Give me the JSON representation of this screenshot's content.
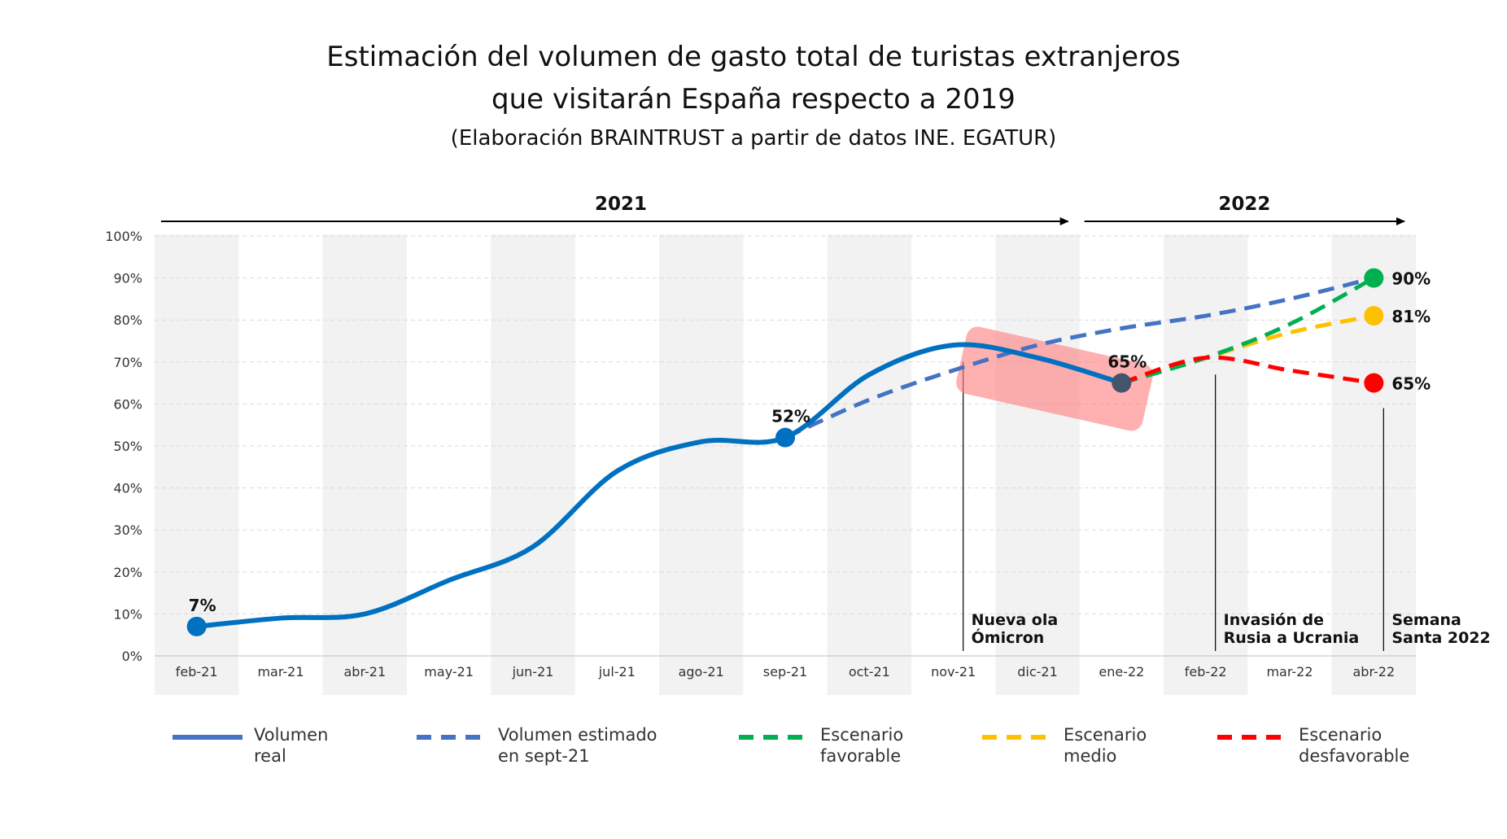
{
  "title_line1": "Estimación del volumen de gasto total de turistas extranjeros",
  "title_line2": "que visitarán España respecto a 2019",
  "subtitle": "(Elaboración BRAINTRUST a partir de datos INE. EGATUR)",
  "colors": {
    "real": "#0070c0",
    "estimado": "#4472c4",
    "favorable": "#00b050",
    "medio": "#ffc000",
    "desfavorable": "#ff0000",
    "highlight": "#ff8080",
    "end_point": "#44546a",
    "band": "#f2f2f2"
  },
  "chart_data": {
    "type": "line",
    "title": "Estimación del volumen de gasto total de turistas extranjeros que visitarán España respecto a 2019",
    "subtitle": "(Elaboración BRAINTRUST a partir de datos INE. EGATUR)",
    "categories": [
      "feb-21",
      "mar-21",
      "abr-21",
      "may-21",
      "jun-21",
      "jul-21",
      "ago-21",
      "sep-21",
      "oct-21",
      "nov-21",
      "dic-21",
      "ene-22",
      "feb-22",
      "mar-22",
      "abr-22"
    ],
    "y_ticks": [
      "0%",
      "10%",
      "20%",
      "30%",
      "40%",
      "50%",
      "60%",
      "70%",
      "80%",
      "90%",
      "100%"
    ],
    "ylim": [
      0,
      100
    ],
    "grid": true,
    "year_labels": [
      {
        "label": "2021",
        "from": "feb-21",
        "to": "dic-21"
      },
      {
        "label": "2022",
        "from": "ene-22",
        "to": "abr-22"
      }
    ],
    "series": [
      {
        "key": "real",
        "name": "Volumen\nreal",
        "style": "solid",
        "x": [
          "feb-21",
          "mar-21",
          "abr-21",
          "may-21",
          "jun-21",
          "jul-21",
          "ago-21",
          "sep-21",
          "oct-21",
          "nov-21",
          "dic-21",
          "ene-22"
        ],
        "values": [
          7,
          9,
          10,
          18,
          26,
          44,
          51,
          52,
          67,
          74,
          71,
          65
        ]
      },
      {
        "key": "estimado",
        "name": "Volumen estimado\nen sept-21",
        "style": "dashed",
        "x": [
          "sep-21",
          "oct-21",
          "nov-21",
          "dic-21",
          "ene-22",
          "feb-22",
          "mar-22",
          "abr-22"
        ],
        "values": [
          52,
          61,
          68,
          74,
          78,
          81,
          85,
          90
        ]
      },
      {
        "key": "favorable",
        "name": "Escenario\nfavorable",
        "style": "dashed",
        "x": [
          "ene-22",
          "feb-22",
          "mar-22",
          "abr-22"
        ],
        "values": [
          65,
          71,
          79,
          90
        ]
      },
      {
        "key": "medio",
        "name": "Escenario\nmedio",
        "style": "dashed",
        "x": [
          "ene-22",
          "feb-22",
          "mar-22",
          "abr-22"
        ],
        "values": [
          65,
          71,
          77,
          81
        ]
      },
      {
        "key": "desfavorable",
        "name": "Escenario\ndesfavorable",
        "style": "dashed",
        "x": [
          "ene-22",
          "feb-22",
          "mar-22",
          "abr-22"
        ],
        "values": [
          65,
          71,
          68,
          65
        ]
      }
    ],
    "point_labels": [
      {
        "x": "feb-21",
        "value": 7,
        "text": "7%",
        "color_key": "real"
      },
      {
        "x": "sep-21",
        "value": 52,
        "text": "52%",
        "color_key": "real"
      },
      {
        "x": "ene-22",
        "value": 65,
        "text": "65%",
        "color_key": "end_point"
      },
      {
        "x": "abr-22",
        "value": 90,
        "text": "90%",
        "color_key": "favorable"
      },
      {
        "x": "abr-22",
        "value": 81,
        "text": "81%",
        "color_key": "medio"
      },
      {
        "x": "abr-22",
        "value": 65,
        "text": "65%",
        "color_key": "desfavorable"
      }
    ],
    "annotations": [
      {
        "x": "nov-21",
        "text": [
          "Nueva ola",
          "Ómicron"
        ]
      },
      {
        "x": "feb-22",
        "text": [
          "Invasión de",
          "Rusia a Ucrania"
        ]
      },
      {
        "x": "abr-22",
        "text": [
          "Semana",
          "Santa 2022"
        ]
      }
    ],
    "highlight": {
      "from": "nov-21",
      "to": "ene-22",
      "note": "Ómicron drop"
    }
  },
  "legend": [
    {
      "key": "real",
      "label": "Volumen\nreal"
    },
    {
      "key": "estimado",
      "label": "Volumen estimado\nen sept-21"
    },
    {
      "key": "favorable",
      "label": "Escenario\nfavorable"
    },
    {
      "key": "medio",
      "label": "Escenario\nmedio"
    },
    {
      "key": "desfavorable",
      "label": "Escenario\ndesfavorable"
    }
  ]
}
